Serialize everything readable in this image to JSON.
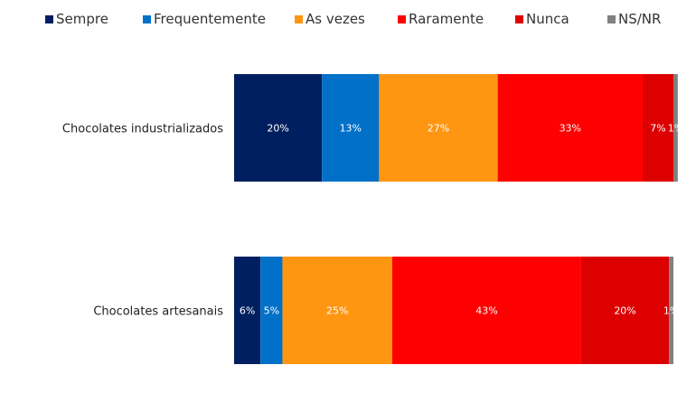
{
  "chart_data": {
    "type": "bar",
    "orientation": "horizontal",
    "stacked": true,
    "title": "",
    "xlabel": "",
    "ylabel": "",
    "grid": false,
    "legend_position": "top",
    "xlim": [
      0,
      100
    ],
    "categories": [
      "Chocolates industrializados",
      "Chocolates artesanais"
    ],
    "series": [
      {
        "name": "Sempre",
        "color": "#001F60",
        "values": [
          20,
          6
        ],
        "labels": [
          "20%",
          "6%"
        ]
      },
      {
        "name": "Frequentemente",
        "color": "#0070C8",
        "values": [
          13,
          5
        ],
        "labels": [
          "13%",
          "5%"
        ]
      },
      {
        "name": "As vezes",
        "color": "#FF9612",
        "values": [
          27,
          25
        ],
        "labels": [
          "27%",
          "25%"
        ]
      },
      {
        "name": "Raramente",
        "color": "#FF0000",
        "values": [
          33,
          43
        ],
        "labels": [
          "33%",
          "43%"
        ]
      },
      {
        "name": "Nunca",
        "color": "#DD0000",
        "values": [
          7,
          20
        ],
        "labels": [
          "7%",
          "20%"
        ]
      },
      {
        "name": "NS/NR",
        "color": "#808080",
        "values": [
          1,
          1
        ],
        "labels": [
          "1%",
          "1%"
        ]
      }
    ]
  }
}
